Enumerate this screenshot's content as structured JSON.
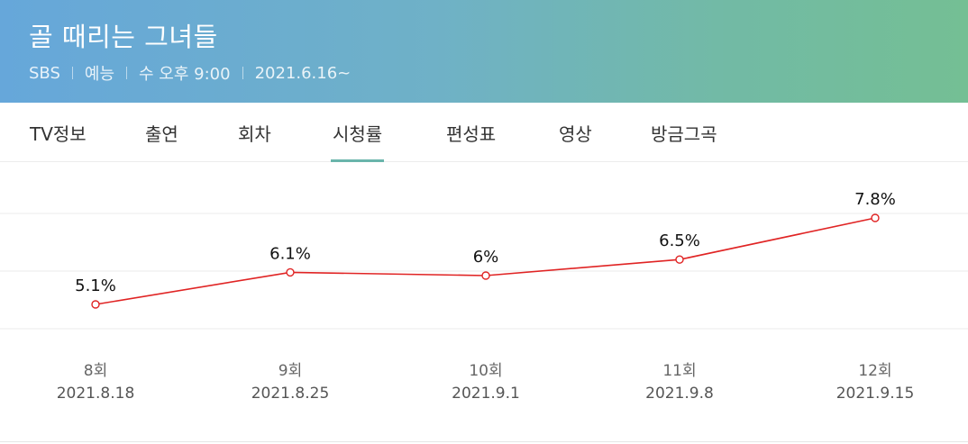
{
  "header": {
    "title": "골 때리는 그녀들",
    "meta": [
      "SBS",
      "예능",
      "수 오후 9:00",
      "2021.6.16~"
    ]
  },
  "tabs": [
    {
      "label": "TV정보",
      "active": false
    },
    {
      "label": "출연",
      "active": false
    },
    {
      "label": "회차",
      "active": false
    },
    {
      "label": "시청률",
      "active": true
    },
    {
      "label": "편성표",
      "active": false
    },
    {
      "label": "영상",
      "active": false
    },
    {
      "label": "방금그곡",
      "active": false
    }
  ],
  "colors": {
    "line": "#e02424",
    "accent_tab": "#6ab5ab"
  },
  "chart_data": {
    "type": "line",
    "categories": [
      "8회",
      "9회",
      "10회",
      "11회",
      "12회"
    ],
    "dates": [
      "2021.8.18",
      "2021.8.25",
      "2021.9.1",
      "2021.9.8",
      "2021.9.15"
    ],
    "series": [
      {
        "values": [
          5.1,
          6.1,
          6.0,
          6.5,
          7.8
        ]
      }
    ],
    "data_labels": [
      "5.1%",
      "6.1%",
      "6%",
      "6.5%",
      "7.8%"
    ],
    "grid": true
  }
}
